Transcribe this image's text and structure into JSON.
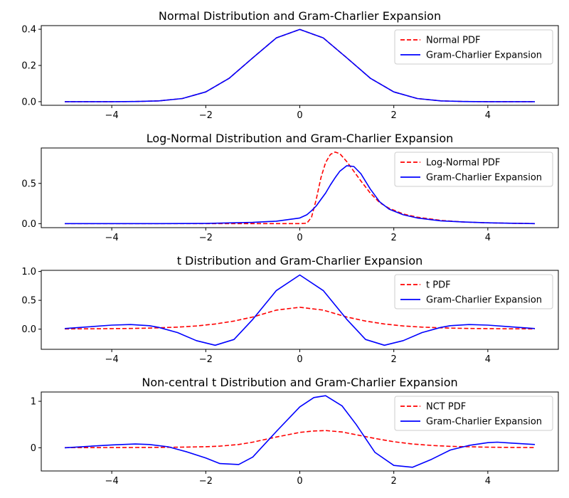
{
  "chart_data": [
    {
      "type": "line",
      "title": "Normal Distribution and Gram-Charlier Expansion",
      "xlim": [
        -5.5,
        5.5
      ],
      "ylim": [
        -0.02,
        0.42
      ],
      "xticks": [
        -4,
        -2,
        0,
        2,
        4
      ],
      "xtick_labels": [
        "−4",
        "−2",
        "0",
        "2",
        "4"
      ],
      "yticks": [
        0.0,
        0.2,
        0.4
      ],
      "ytick_labels": [
        "0.0",
        "0.2",
        "0.4"
      ],
      "legend_position": "top-right",
      "x": [
        -5,
        -4.5,
        -4,
        -3.5,
        -3,
        -2.5,
        -2,
        -1.5,
        -1,
        -0.5,
        0,
        0.5,
        1,
        1.5,
        2,
        2.5,
        3,
        3.5,
        4,
        4.5,
        5
      ],
      "series": [
        {
          "name": "Normal PDF",
          "color": "#ff0000",
          "dash": "dashed",
          "values": [
            0.0,
            0.0,
            0.0001,
            0.0009,
            0.0044,
            0.0175,
            0.054,
            0.1295,
            0.242,
            0.3521,
            0.3989,
            0.3521,
            0.242,
            0.1295,
            0.054,
            0.0175,
            0.0044,
            0.0009,
            0.0001,
            0.0,
            0.0
          ]
        },
        {
          "name": "Gram-Charlier Expansion",
          "color": "#0000ff",
          "dash": "solid",
          "values": [
            0.0,
            0.0,
            0.0001,
            0.0009,
            0.0044,
            0.0175,
            0.054,
            0.1295,
            0.242,
            0.3521,
            0.3989,
            0.3521,
            0.242,
            0.1295,
            0.054,
            0.0175,
            0.0044,
            0.0009,
            0.0001,
            0.0,
            0.0
          ]
        }
      ]
    },
    {
      "type": "line",
      "title": "Log-Normal Distribution and Gram-Charlier Expansion",
      "xlim": [
        -5.5,
        5.5
      ],
      "ylim": [
        -0.05,
        0.94
      ],
      "xticks": [
        -4,
        -2,
        0,
        2,
        4
      ],
      "xtick_labels": [
        "−4",
        "−2",
        "0",
        "2",
        "4"
      ],
      "yticks": [
        0.0,
        0.5
      ],
      "ytick_labels": [
        "0.0",
        "0.5"
      ],
      "legend_position": "top-right",
      "x": [
        -5,
        -4,
        -3,
        -2,
        -1,
        -0.5,
        0,
        0.15,
        0.25,
        0.35,
        0.45,
        0.55,
        0.65,
        0.75,
        0.85,
        1.0,
        1.15,
        1.3,
        1.5,
        1.7,
        1.9,
        2.2,
        2.5,
        3,
        3.5,
        4,
        4.5,
        5
      ],
      "series": [
        {
          "name": "Log-Normal PDF",
          "color": "#ff0000",
          "dash": "dashed",
          "values": [
            0,
            0,
            0,
            0,
            0,
            0,
            0,
            0.005,
            0.08,
            0.3,
            0.57,
            0.76,
            0.86,
            0.89,
            0.87,
            0.77,
            0.65,
            0.53,
            0.38,
            0.26,
            0.19,
            0.12,
            0.08,
            0.04,
            0.02,
            0.01,
            0.005,
            0
          ]
        },
        {
          "name": "Gram-Charlier Expansion",
          "color": "#0000ff",
          "dash": "solid",
          "values": [
            0,
            0,
            0,
            0.002,
            0.015,
            0.03,
            0.07,
            0.11,
            0.16,
            0.22,
            0.3,
            0.38,
            0.48,
            0.57,
            0.65,
            0.72,
            0.71,
            0.62,
            0.43,
            0.27,
            0.18,
            0.11,
            0.07,
            0.035,
            0.02,
            0.01,
            0.005,
            0
          ]
        }
      ]
    },
    {
      "type": "line",
      "title": "t Distribution and Gram-Charlier Expansion",
      "xlim": [
        -5.5,
        5.5
      ],
      "ylim": [
        -0.35,
        1.02
      ],
      "xticks": [
        -4,
        -2,
        0,
        2,
        4
      ],
      "xtick_labels": [
        "−4",
        "−2",
        "0",
        "2",
        "4"
      ],
      "yticks": [
        0.0,
        0.5,
        1.0
      ],
      "ytick_labels": [
        "0.0",
        "0.5",
        "1.0"
      ],
      "legend_position": "top-right",
      "x": [
        -5,
        -4.5,
        -4,
        -3.6,
        -3.2,
        -3,
        -2.6,
        -2.2,
        -1.8,
        -1.4,
        -1,
        -0.5,
        0,
        0.5,
        1,
        1.4,
        1.8,
        2.2,
        2.6,
        3,
        3.2,
        3.6,
        4,
        4.5,
        5
      ],
      "series": [
        {
          "name": "t PDF",
          "color": "#ff0000",
          "dash": "dashed",
          "values": [
            0.004,
            0.006,
            0.009,
            0.012,
            0.018,
            0.023,
            0.035,
            0.055,
            0.09,
            0.14,
            0.21,
            0.33,
            0.38,
            0.33,
            0.21,
            0.14,
            0.09,
            0.055,
            0.035,
            0.023,
            0.018,
            0.012,
            0.009,
            0.006,
            0.004
          ]
        },
        {
          "name": "Gram-Charlier Expansion",
          "color": "#0000ff",
          "dash": "solid",
          "values": [
            0.01,
            0.04,
            0.07,
            0.08,
            0.06,
            0.03,
            -0.06,
            -0.2,
            -0.28,
            -0.18,
            0.17,
            0.67,
            0.94,
            0.67,
            0.17,
            -0.18,
            -0.28,
            -0.2,
            -0.06,
            0.03,
            0.06,
            0.08,
            0.07,
            0.04,
            0.01
          ]
        }
      ]
    },
    {
      "type": "line",
      "title": "Non-central t Distribution and Gram-Charlier Expansion",
      "xlim": [
        -5.5,
        5.5
      ],
      "ylim": [
        -0.5,
        1.2
      ],
      "xticks": [
        -4,
        -2,
        0,
        2,
        4
      ],
      "xtick_labels": [
        "−4",
        "−2",
        "0",
        "2",
        "4"
      ],
      "yticks": [
        0,
        1
      ],
      "ytick_labels": [
        "0",
        "1"
      ],
      "legend_position": "top-right",
      "x": [
        -5,
        -4.5,
        -4,
        -3.5,
        -3.2,
        -2.8,
        -2.4,
        -2,
        -1.7,
        -1.3,
        -1,
        -0.5,
        0,
        0.3,
        0.55,
        0.9,
        1.2,
        1.6,
        2,
        2.4,
        2.8,
        3.2,
        3.6,
        4,
        4.2,
        4.5,
        5
      ],
      "series": [
        {
          "name": "NCT PDF",
          "color": "#ff0000",
          "dash": "dashed",
          "values": [
            0.002,
            0.003,
            0.004,
            0.006,
            0.007,
            0.01,
            0.014,
            0.022,
            0.035,
            0.07,
            0.12,
            0.23,
            0.33,
            0.36,
            0.37,
            0.34,
            0.28,
            0.2,
            0.13,
            0.08,
            0.05,
            0.03,
            0.02,
            0.012,
            0.01,
            0.007,
            0.004
          ]
        },
        {
          "name": "Gram-Charlier Expansion",
          "color": "#0000ff",
          "dash": "solid",
          "values": [
            0.0,
            0.03,
            0.06,
            0.08,
            0.07,
            0.02,
            -0.09,
            -0.22,
            -0.34,
            -0.36,
            -0.2,
            0.35,
            0.88,
            1.08,
            1.12,
            0.9,
            0.5,
            -0.1,
            -0.38,
            -0.42,
            -0.25,
            -0.05,
            0.05,
            0.11,
            0.12,
            0.1,
            0.07
          ]
        }
      ]
    }
  ]
}
